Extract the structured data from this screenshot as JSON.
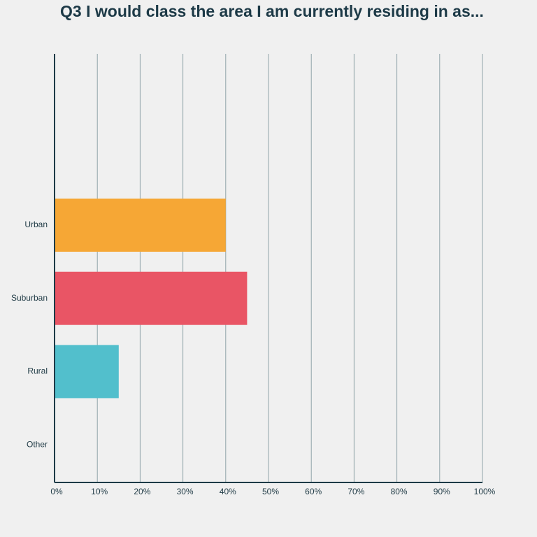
{
  "chart_data": {
    "type": "bar",
    "orientation": "horizontal",
    "title": "Q3 I would class the area I am currently residing in as...",
    "categories": [
      "Urban",
      "Suburban",
      "Rural",
      "Other"
    ],
    "values": [
      40,
      45,
      15,
      0
    ],
    "colors": [
      "#f6a735",
      "#e95565",
      "#52bfcc",
      "#9b9b9b"
    ],
    "xlim": [
      0,
      100
    ],
    "xticks": [
      {
        "value": 0,
        "label": "0%"
      },
      {
        "value": 10,
        "label": "10%"
      },
      {
        "value": 20,
        "label": "20%"
      },
      {
        "value": 30,
        "label": "30%"
      },
      {
        "value": 40,
        "label": "40%"
      },
      {
        "value": 50,
        "label": "50%"
      },
      {
        "value": 60,
        "label": "60%"
      },
      {
        "value": 70,
        "label": "70%"
      },
      {
        "value": 80,
        "label": "80%"
      },
      {
        "value": 90,
        "label": "90%"
      },
      {
        "value": 100,
        "label": "100%"
      }
    ],
    "grid": true
  }
}
